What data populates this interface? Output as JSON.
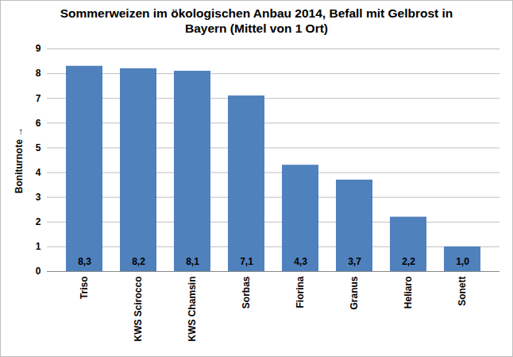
{
  "chart_data": {
    "type": "bar",
    "title": "Sommerweizen im ökologischen Anbau 2014, Befall mit Gelbrost in Bayern (Mittel von 1 Ort)",
    "y_label": "Boniturnote",
    "categories": [
      "Triso",
      "KWS Scirocco",
      "KWS Chamsin",
      "Sorbas",
      "Fiorina",
      "Granus",
      "Heliaro",
      "Sonett"
    ],
    "values": [
      8.3,
      8.2,
      8.1,
      7.1,
      4.3,
      3.7,
      2.2,
      1.0
    ],
    "value_labels": [
      "8,3",
      "8,2",
      "8,1",
      "7,1",
      "4,3",
      "3,7",
      "2,2",
      "1,0"
    ],
    "color": "#4f81bd",
    "ylim": [
      0,
      9
    ],
    "yticks": [
      0,
      1,
      2,
      3,
      4,
      5,
      6,
      7,
      8,
      9
    ],
    "grid": true,
    "data_labels": true
  }
}
